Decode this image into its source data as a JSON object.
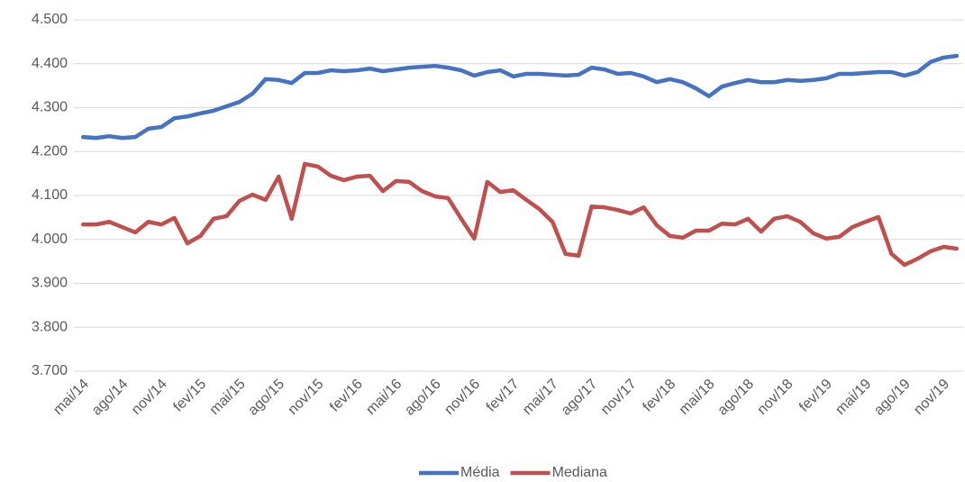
{
  "chart_data": {
    "type": "line",
    "categories": [
      "mai/14",
      null,
      null,
      "ago/14",
      null,
      null,
      "nov/14",
      null,
      null,
      "fev/15",
      null,
      null,
      "mai/15",
      null,
      null,
      "ago/15",
      null,
      null,
      "nov/15",
      null,
      null,
      "fev/16",
      null,
      null,
      "mai/16",
      null,
      null,
      "ago/16",
      null,
      null,
      "nov/16",
      null,
      null,
      "fev/17",
      null,
      null,
      "mai/17",
      null,
      null,
      "ago/17",
      null,
      null,
      "nov/17",
      null,
      null,
      "fev/18",
      null,
      null,
      "mai/18",
      null,
      null,
      "ago/18",
      null,
      null,
      "nov/18",
      null,
      null,
      "fev/19",
      null,
      null,
      "mai/19",
      null,
      null,
      "ago/19",
      null,
      null,
      "nov/19",
      null
    ],
    "series": [
      {
        "name": "Média",
        "color": "#4472c4",
        "values": [
          4233,
          4231,
          4235,
          4231,
          4233,
          4252,
          4256,
          4276,
          4280,
          4287,
          4293,
          4303,
          4313,
          4332,
          4365,
          4363,
          4356,
          4379,
          4379,
          4385,
          4383,
          4385,
          4389,
          4383,
          4387,
          4391,
          4393,
          4395,
          4391,
          4385,
          4373,
          4381,
          4385,
          4371,
          4377,
          4377,
          4375,
          4373,
          4375,
          4391,
          4387,
          4377,
          4379,
          4371,
          4358,
          4365,
          4358,
          4344,
          4326,
          4348,
          4356,
          4363,
          4358,
          4358,
          4363,
          4361,
          4363,
          4367,
          4377,
          4377,
          4379,
          4381,
          4381,
          4373,
          4381,
          4404,
          4414,
          4418
        ]
      },
      {
        "name": "Mediana",
        "color": "#c0504d",
        "values": [
          4034,
          4034,
          4040,
          4028,
          4016,
          4040,
          4034,
          4049,
          3991,
          4008,
          4047,
          4053,
          4088,
          4102,
          4090,
          4143,
          4047,
          4172,
          4166,
          4145,
          4135,
          4143,
          4145,
          4110,
          4133,
          4131,
          4110,
          4098,
          4094,
          4047,
          4002,
          4131,
          4108,
          4112,
          4090,
          4069,
          4040,
          3967,
          3963,
          4075,
          4073,
          4067,
          4059,
          4073,
          4032,
          4008,
          4004,
          4020,
          4020,
          4036,
          4034,
          4047,
          4018,
          4047,
          4053,
          4040,
          4014,
          4002,
          4006,
          4028,
          4040,
          4051,
          3967,
          3942,
          3956,
          3973,
          3983,
          3979
        ]
      }
    ],
    "ylim": [
      3700,
      4500
    ],
    "yticks": [
      {
        "value": 3700,
        "label": "3.700"
      },
      {
        "value": 3800,
        "label": "3.800"
      },
      {
        "value": 3900,
        "label": "3.900"
      },
      {
        "value": 4000,
        "label": "4.000"
      },
      {
        "value": 4100,
        "label": "4.100"
      },
      {
        "value": 4200,
        "label": "4.200"
      },
      {
        "value": 4300,
        "label": "4.300"
      },
      {
        "value": 4400,
        "label": "4.400"
      },
      {
        "value": 4500,
        "label": "4.500"
      }
    ],
    "grid": true,
    "legend": "bottom"
  }
}
